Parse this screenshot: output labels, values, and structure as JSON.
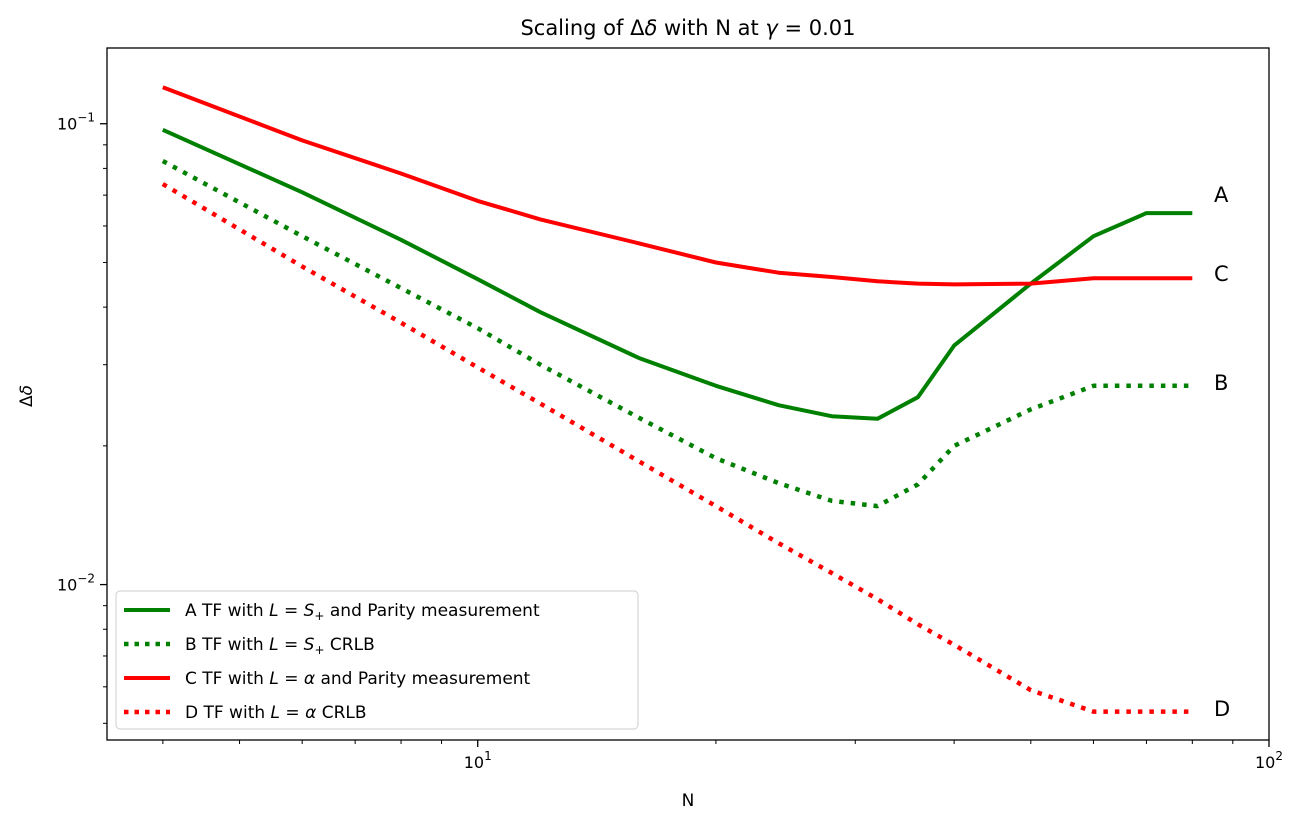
{
  "chart_data": {
    "type": "line",
    "title_parts": [
      "Scaling of Δ",
      "δ",
      " with N at ",
      "γ",
      " = 0.01"
    ],
    "xlabel": "N",
    "ylabel_parts": [
      "Δ",
      "δ"
    ],
    "xscale": "log",
    "yscale": "log",
    "xlim": [
      3.4,
      100
    ],
    "ylim": [
      0.0046,
      0.146
    ],
    "x_major_ticks": [
      {
        "value": 10,
        "base": "10",
        "exp": "1"
      },
      {
        "value": 100,
        "base": "10",
        "exp": "2"
      }
    ],
    "y_major_ticks": [
      {
        "value": 0.1,
        "base": "10",
        "exp": "−1"
      },
      {
        "value": 0.01,
        "base": "10",
        "exp": "−2"
      }
    ],
    "x_minor_ticks": [
      4,
      5,
      6,
      7,
      8,
      9,
      20,
      30,
      40,
      50,
      60,
      70,
      80,
      90
    ],
    "y_minor_ticks": [
      0.005,
      0.006,
      0.007,
      0.008,
      0.009,
      0.02,
      0.03,
      0.04,
      0.05,
      0.06,
      0.07,
      0.08,
      0.09
    ],
    "legend_position": "lower-left",
    "series": [
      {
        "key": "A",
        "name_parts": [
          "A  TF with ",
          "L",
          " = ",
          "S",
          "+",
          " and Parity measurement"
        ],
        "color": "#008000",
        "style": "solid",
        "x": [
          4,
          6,
          8,
          10,
          12,
          16,
          20,
          24,
          28,
          32,
          36,
          40,
          50,
          60,
          70,
          80
        ],
        "y": [
          0.097,
          0.071,
          0.056,
          0.046,
          0.039,
          0.031,
          0.027,
          0.0245,
          0.0232,
          0.0229,
          0.0255,
          0.033,
          0.045,
          0.057,
          0.064,
          0.064
        ]
      },
      {
        "key": "B",
        "name_parts": [
          "B  TF with ",
          "L",
          " = ",
          "S",
          "+",
          " CRLB"
        ],
        "color": "#008000",
        "style": "dotted",
        "x": [
          4,
          6,
          8,
          10,
          12,
          16,
          20,
          24,
          28,
          32,
          36,
          40,
          50,
          60,
          70,
          80
        ],
        "y": [
          0.083,
          0.057,
          0.044,
          0.036,
          0.03,
          0.023,
          0.0188,
          0.0166,
          0.0152,
          0.0148,
          0.0165,
          0.02,
          0.024,
          0.027,
          0.027,
          0.027
        ]
      },
      {
        "key": "C",
        "name_parts": [
          "C  TF with ",
          "L",
          " = ",
          "α",
          " and Parity measurement"
        ],
        "color": "#ff0000",
        "style": "solid",
        "x": [
          4,
          6,
          8,
          10,
          12,
          16,
          20,
          24,
          28,
          32,
          36,
          40,
          50,
          60,
          70,
          80
        ],
        "y": [
          0.12,
          0.092,
          0.078,
          0.068,
          0.062,
          0.055,
          0.05,
          0.0475,
          0.0465,
          0.0455,
          0.045,
          0.0448,
          0.045,
          0.0462,
          0.0462,
          0.0462
        ]
      },
      {
        "key": "D",
        "name_parts": [
          "D  TF with ",
          "L",
          " = ",
          "α",
          " CRLB"
        ],
        "color": "#ff0000",
        "style": "dotted",
        "x": [
          4,
          6,
          8,
          10,
          12,
          16,
          20,
          24,
          28,
          32,
          36,
          40,
          50,
          60,
          70,
          80
        ],
        "y": [
          0.074,
          0.049,
          0.037,
          0.0296,
          0.0247,
          0.0185,
          0.0148,
          0.0123,
          0.0106,
          0.0093,
          0.0082,
          0.0074,
          0.0059,
          0.0053,
          0.0053,
          0.0053
        ]
      }
    ]
  }
}
